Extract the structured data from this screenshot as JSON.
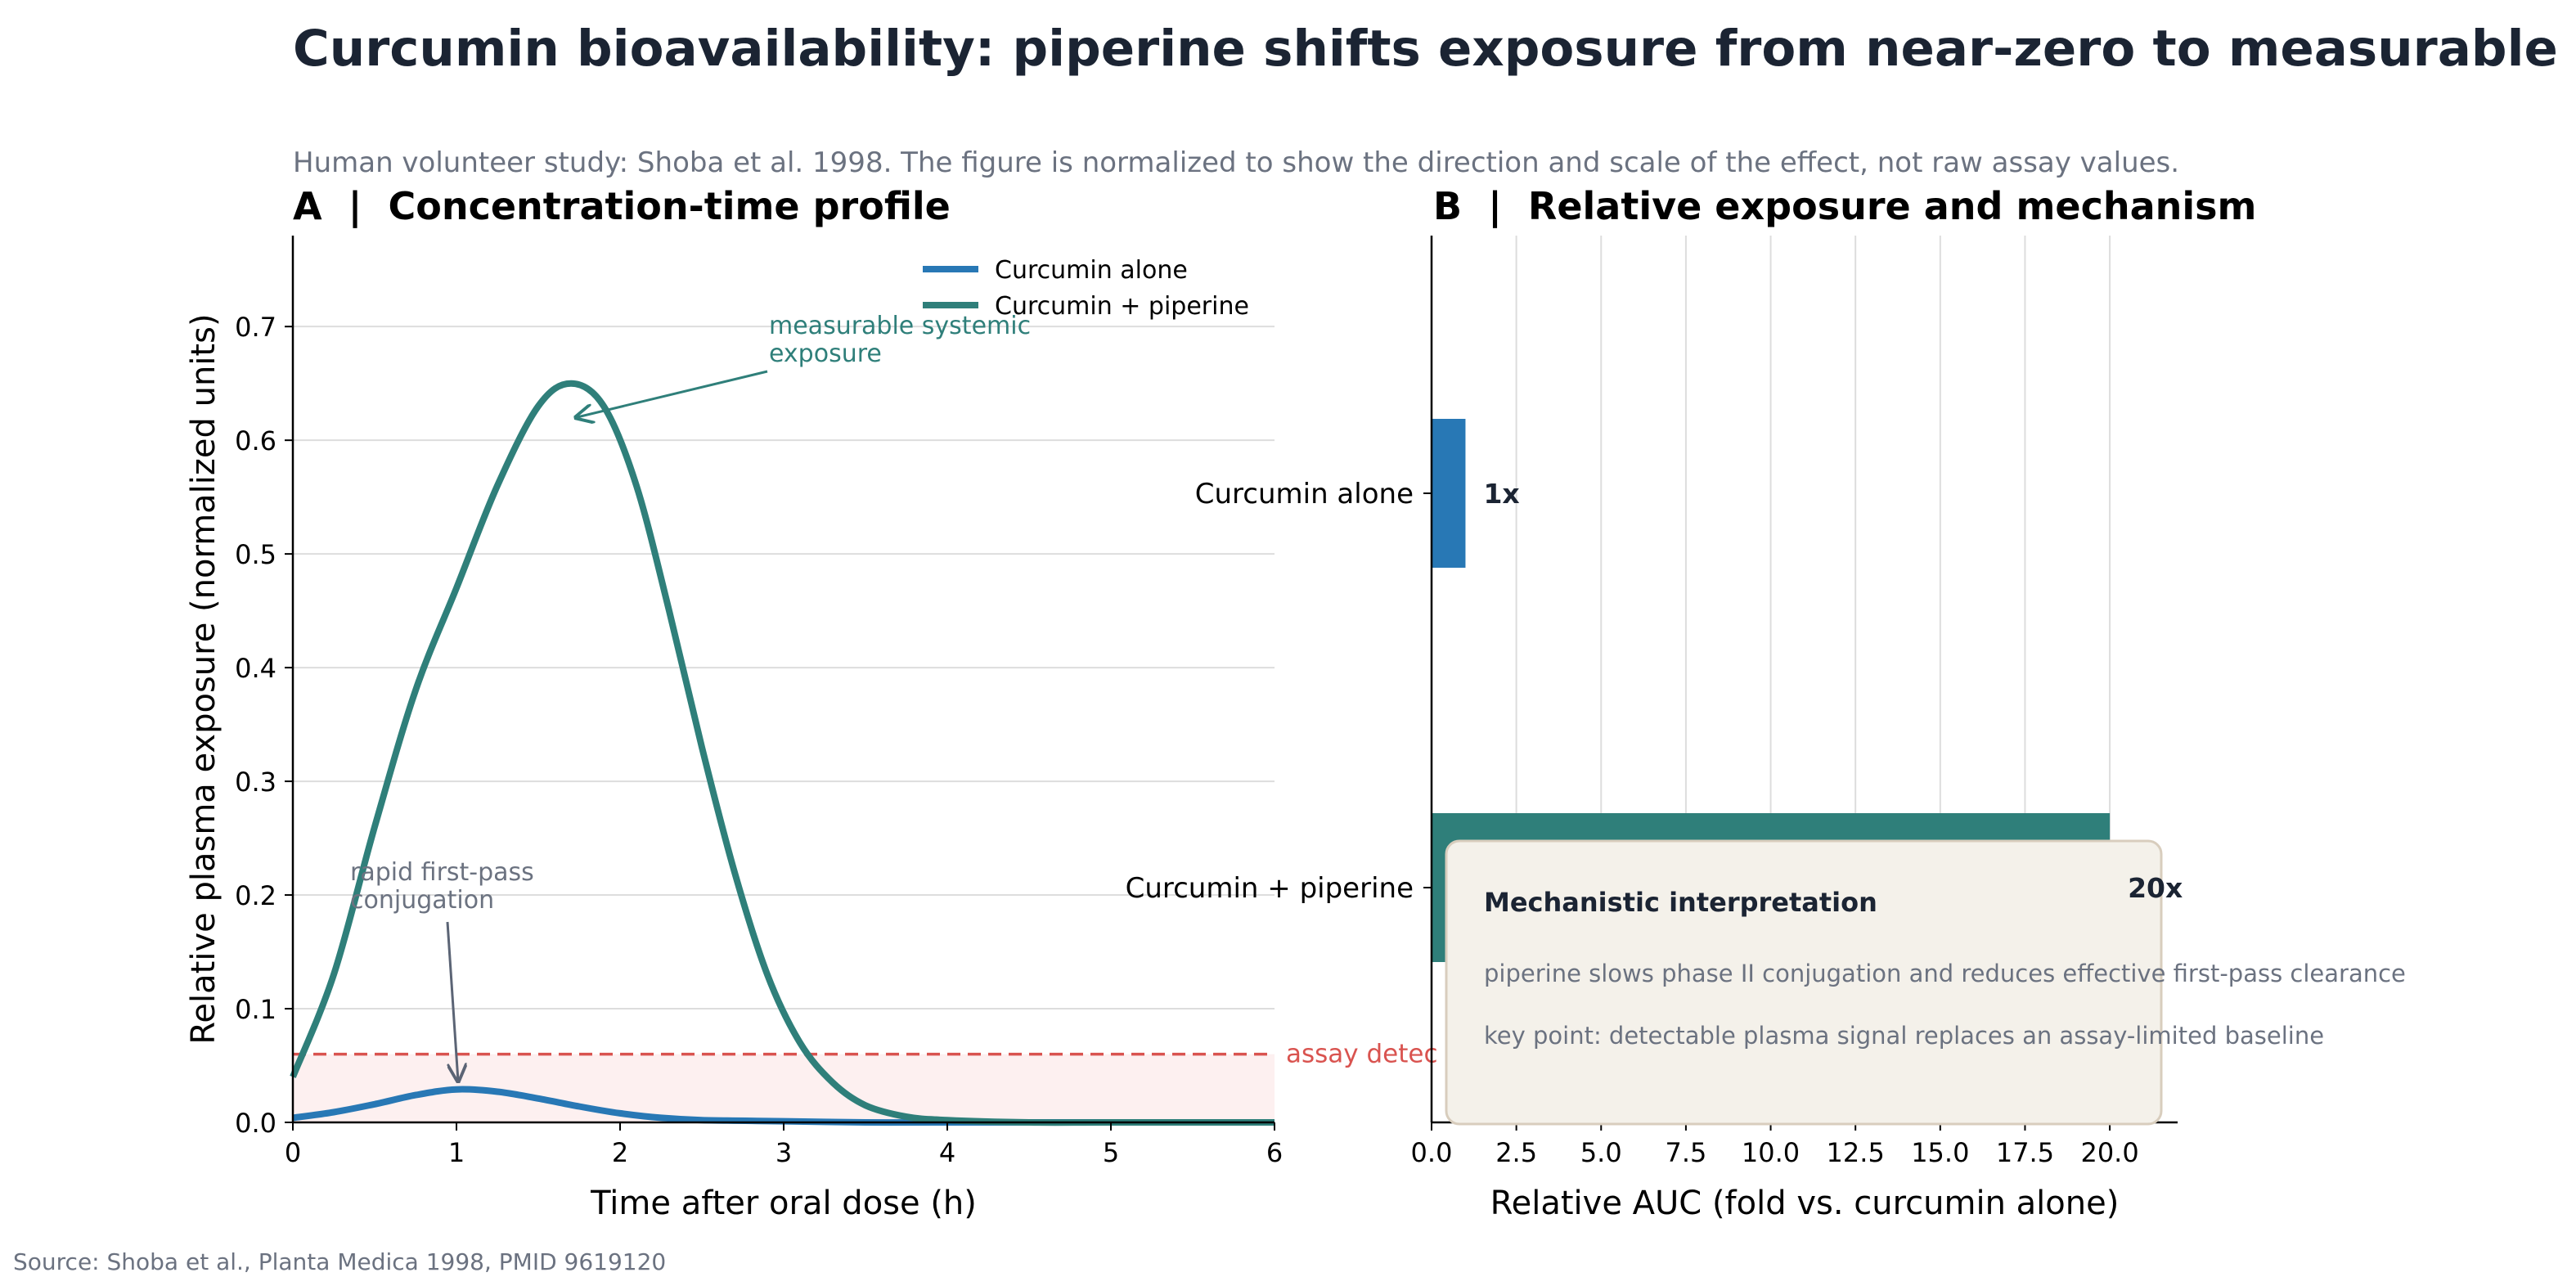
{
  "header": {
    "title": "Curcumin bioavailability: piperine shifts exposure from near-zero to measurable",
    "subtitle": "Human volunteer study: Shoba et al. 1998. The figure is normalized to show the direction and scale of the effect, not raw assay values."
  },
  "footer": {
    "source": "Source: Shoba et al., Planta Medica 1998, PMID 9619120"
  },
  "colors": {
    "alone": "#2878b5",
    "piperine": "#2f7f7a",
    "threshold": "#d9534f",
    "title": "#1b2433",
    "muted": "#6b7280",
    "box_bg": "#f4f1ea",
    "box_border": "#d8cdbd"
  },
  "chart_data": [
    {
      "type": "line",
      "title": "A  |  Concentration-time profile",
      "xlabel": "Time after oral dose (h)",
      "ylabel": "Relative plasma exposure (normalized units)",
      "xlim": [
        0,
        6
      ],
      "ylim": [
        0,
        0.78
      ],
      "xticks": [
        "0",
        "1",
        "2",
        "3",
        "4",
        "5",
        "6"
      ],
      "yticks": [
        "0.0",
        "0.1",
        "0.2",
        "0.3",
        "0.4",
        "0.5",
        "0.6",
        "0.7"
      ],
      "grid": "horizontal",
      "legend_position": "top-right",
      "series": [
        {
          "name": "Curcumin alone",
          "x": [
            0,
            0.25,
            0.5,
            0.75,
            1.0,
            1.25,
            1.5,
            1.75,
            2.0,
            2.25,
            2.5,
            3.0,
            3.5,
            4.0,
            5.0,
            6.0
          ],
          "y": [
            0.004,
            0.009,
            0.016,
            0.024,
            0.029,
            0.027,
            0.021,
            0.014,
            0.008,
            0.004,
            0.002,
            0.001,
            0.0,
            0.0,
            0.0,
            0.0
          ]
        },
        {
          "name": "Curcumin + piperine",
          "x": [
            0,
            0.25,
            0.5,
            0.75,
            1.0,
            1.25,
            1.5,
            1.7,
            1.9,
            2.1,
            2.3,
            2.5,
            2.7,
            2.9,
            3.1,
            3.3,
            3.5,
            3.75,
            4.0,
            4.5,
            5.0,
            6.0
          ],
          "y": [
            0.04,
            0.13,
            0.26,
            0.38,
            0.47,
            0.56,
            0.63,
            0.65,
            0.63,
            0.56,
            0.45,
            0.33,
            0.22,
            0.13,
            0.07,
            0.035,
            0.015,
            0.005,
            0.002,
            0.0,
            0.0,
            0.0
          ]
        }
      ],
      "threshold": {
        "value": 0.06,
        "label": "assay detec"
      },
      "annotations": [
        {
          "text_lines": [
            "measurable systemic",
            "exposure"
          ],
          "point": [
            1.73,
            0.62
          ],
          "series": "Curcumin + piperine"
        },
        {
          "text_lines": [
            "rapid first-pass",
            "conjugation"
          ],
          "point": [
            1.0,
            0.032
          ],
          "series": "Curcumin alone"
        }
      ]
    },
    {
      "type": "bar",
      "orientation": "horizontal",
      "title": "B  |  Relative exposure and mechanism",
      "xlabel": "Relative AUC (fold vs. curcumin alone)",
      "xlim": [
        0,
        22
      ],
      "xticks": [
        "0.0",
        "2.5",
        "5.0",
        "7.5",
        "10.0",
        "12.5",
        "15.0",
        "17.5",
        "20.0"
      ],
      "grid": "vertical",
      "categories": [
        "Curcumin alone",
        "Curcumin + piperine"
      ],
      "values": [
        1,
        20
      ],
      "value_labels": [
        "1x",
        "20x"
      ],
      "mechanism_box": {
        "heading": "Mechanistic interpretation",
        "line1": "piperine slows phase II conjugation and reduces effective first-pass clearance",
        "line2": "key point: detectable plasma signal replaces an assay-limited baseline"
      }
    }
  ]
}
